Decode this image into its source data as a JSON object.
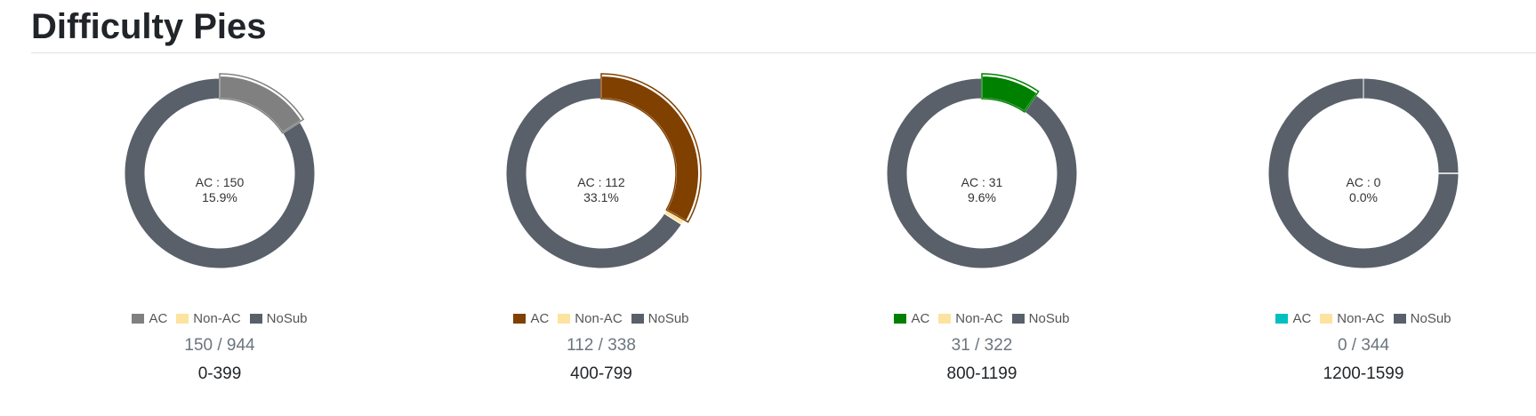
{
  "page": {
    "title": "Difficulty Pies"
  },
  "colors": {
    "nonac": "#fde3a0",
    "nosub": "#59606a"
  },
  "legend_labels": {
    "ac": "AC",
    "nonac": "Non-AC",
    "nosub": "NoSub"
  },
  "pies": [
    {
      "range": "0-399",
      "ac": 150,
      "nonac": 0,
      "total": 944,
      "ac_label": "AC : 150",
      "percent_label": "15.9%",
      "count_label": "150 / 944",
      "ac_color": "#808080"
    },
    {
      "range": "400-799",
      "ac": 112,
      "nonac": 3,
      "total": 338,
      "ac_label": "AC : 112",
      "percent_label": "33.1%",
      "count_label": "112 / 338",
      "ac_color": "#804000"
    },
    {
      "range": "800-1199",
      "ac": 31,
      "nonac": 0,
      "total": 322,
      "ac_label": "AC : 31",
      "percent_label": "9.6%",
      "count_label": "31 / 322",
      "ac_color": "#008000"
    },
    {
      "range": "1200-1599",
      "ac": 0,
      "nonac": 0,
      "total": 344,
      "ac_label": "AC : 0",
      "percent_label": "0.0%",
      "count_label": "0 / 344",
      "ac_color": "#00c0c0"
    }
  ],
  "chart_data": {
    "type": "pie",
    "title": "Difficulty Pies",
    "legend": [
      "AC",
      "Non-AC",
      "NoSub"
    ],
    "charts": [
      {
        "category": "0-399",
        "values": {
          "AC": 150,
          "Non-AC": 0,
          "NoSub": 794
        },
        "total": 944
      },
      {
        "category": "400-799",
        "values": {
          "AC": 112,
          "Non-AC": 3,
          "NoSub": 223
        },
        "total": 338
      },
      {
        "category": "800-1199",
        "values": {
          "AC": 31,
          "Non-AC": 0,
          "NoSub": 291
        },
        "total": 322
      },
      {
        "category": "1200-1599",
        "values": {
          "AC": 0,
          "Non-AC": 0,
          "NoSub": 344
        },
        "total": 344
      }
    ]
  }
}
